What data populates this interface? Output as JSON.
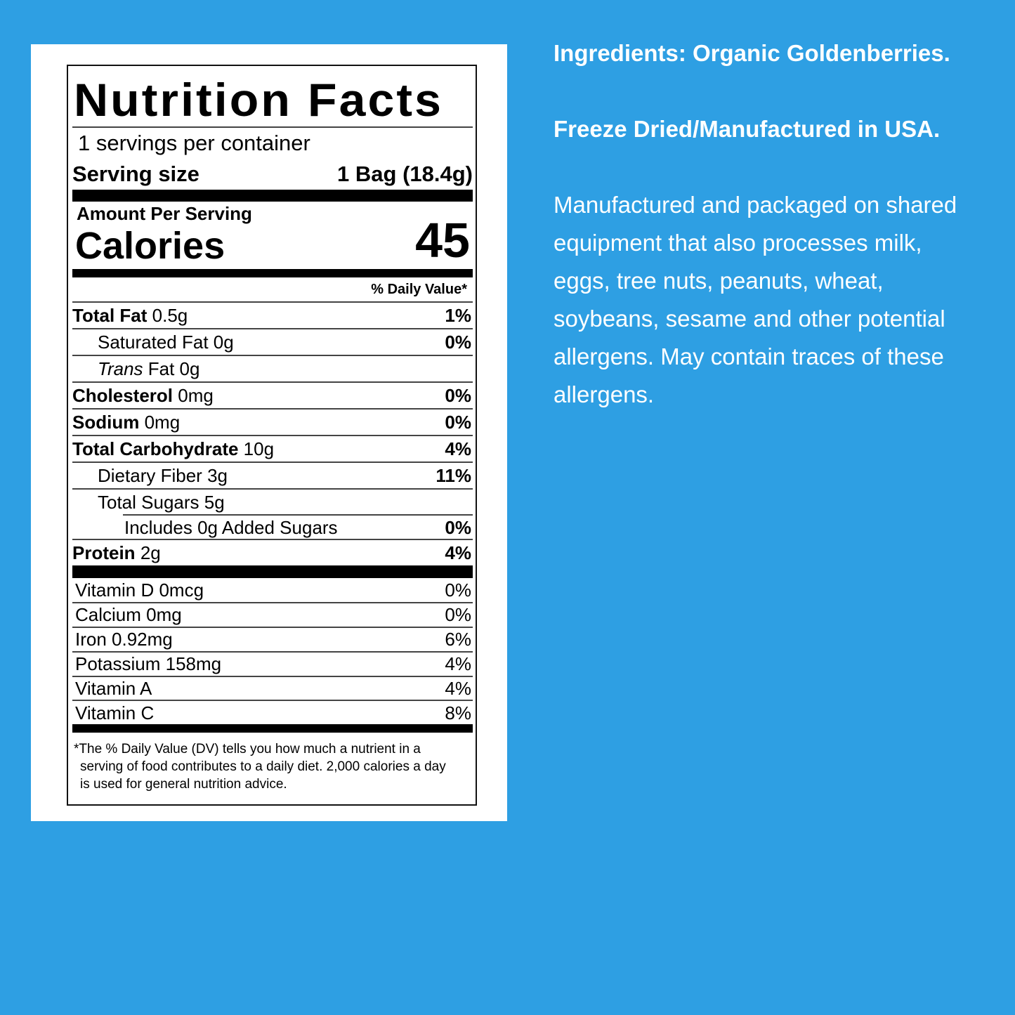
{
  "label": {
    "title": "Nutrition Facts",
    "servings": "1 servings per container",
    "serving_size_label": "Serving size",
    "serving_size_value": "1 Bag (18.4g)",
    "amount_per_serving": "Amount Per Serving",
    "calories_label": "Calories",
    "calories_value": "45",
    "dv_header": "% Daily Value*",
    "nutrients": [
      {
        "name": "Total Fat",
        "amount": "0.5g",
        "dv": "1%"
      },
      {
        "name": "Saturated Fat",
        "amount": "0g",
        "dv": "0%"
      },
      {
        "name": "Trans",
        "amount": "Fat 0g",
        "dv": ""
      },
      {
        "name": "Cholesterol",
        "amount": "0mg",
        "dv": "0%"
      },
      {
        "name": "Sodium",
        "amount": "0mg",
        "dv": "0%"
      },
      {
        "name": "Total Carbohydrate",
        "amount": "10g",
        "dv": "4%"
      },
      {
        "name": "Dietary Fiber",
        "amount": "3g",
        "dv": "11%"
      },
      {
        "name": "Total Sugars",
        "amount": "5g",
        "dv": ""
      },
      {
        "name": "Includes 0g Added Sugars",
        "amount": "",
        "dv": "0%"
      },
      {
        "name": "Protein",
        "amount": "2g",
        "dv": "4%"
      }
    ],
    "vitamins": [
      {
        "name": "Vitamin D 0mcg",
        "dv": "0%"
      },
      {
        "name": "Calcium 0mg",
        "dv": "0%"
      },
      {
        "name": "Iron 0.92mg",
        "dv": "6%"
      },
      {
        "name": "Potassium 158mg",
        "dv": "4%"
      },
      {
        "name": "Vitamin A",
        "dv": "4%"
      },
      {
        "name": "Vitamin C",
        "dv": "8%"
      }
    ],
    "footnote": "*The % Daily Value (DV) tells you how much a nutrient in a serving of food contributes to a daily diet. 2,000 calories a day is used for general nutrition advice."
  },
  "side": {
    "ingredients": "Ingredients: Organic Goldenberries.",
    "origin": "Freeze Dried/Manufactured in USA.",
    "allergen": "Manufactured and packaged on shared equipment that also processes milk, eggs, tree nuts, peanuts, wheat, soybeans, sesame and other potential allergens. May contain traces of these allergens."
  },
  "colors": {
    "background": "#2e9fe3",
    "text": "#ffffff"
  }
}
